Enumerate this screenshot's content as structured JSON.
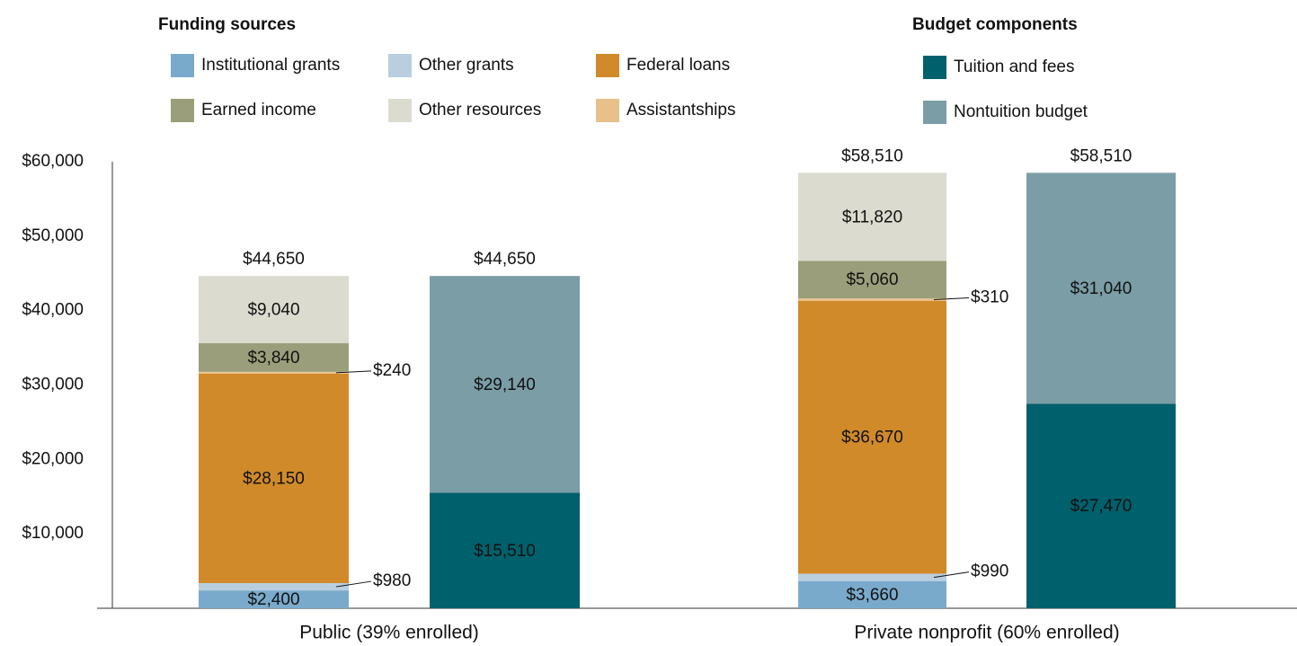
{
  "chart_data": {
    "type": "stacked_bar",
    "categories": [
      "Public (39% enrolled)",
      "Private nonprofit (60% enrolled)"
    ],
    "ylim": [
      0,
      60000
    ],
    "yticks": [
      {
        "value": 10000,
        "label": "$10,000"
      },
      {
        "value": 20000,
        "label": "$20,000"
      },
      {
        "value": 30000,
        "label": "$30,000"
      },
      {
        "value": 40000,
        "label": "$40,000"
      },
      {
        "value": 50000,
        "label": "$50,000"
      },
      {
        "value": 60000,
        "label": "$60,000"
      }
    ],
    "stacks": [
      {
        "legend_title": "Funding sources",
        "totals": [
          44650,
          58510
        ],
        "total_labels": [
          "$44,650",
          "$58,510"
        ],
        "series": [
          {
            "name": "Institutional grants",
            "color": "#7aaacb",
            "values": [
              2400,
              3660
            ],
            "value_labels": [
              "$2,400",
              "$3,660"
            ]
          },
          {
            "name": "Other grants",
            "color": "#b9cfe0",
            "values": [
              980,
              990
            ],
            "value_labels": [
              "$980",
              "$990"
            ]
          },
          {
            "name": "Federal loans",
            "color": "#d08a2a",
            "values": [
              28150,
              36670
            ],
            "value_labels": [
              "$28,150",
              "$36,670"
            ]
          },
          {
            "name": "Assistantships",
            "color": "#e8c08a",
            "values": [
              240,
              310
            ],
            "value_labels": [
              "$240",
              "$310"
            ]
          },
          {
            "name": "Earned income",
            "color": "#9b9e7a",
            "values": [
              3840,
              5060
            ],
            "value_labels": [
              "$3,840",
              "$5,060"
            ]
          },
          {
            "name": "Other resources",
            "color": "#dbdbcf",
            "values": [
              9040,
              11820
            ],
            "value_labels": [
              "$9,040",
              "$11,820"
            ]
          }
        ]
      },
      {
        "legend_title": "Budget components",
        "totals": [
          44650,
          58510
        ],
        "total_labels": [
          "$44,650",
          "$58,510"
        ],
        "series": [
          {
            "name": "Tuition and fees",
            "color": "#00606b",
            "values": [
              15510,
              27470
            ],
            "value_labels": [
              "$15,510",
              "$27,470"
            ]
          },
          {
            "name": "Nontuition budget",
            "color": "#7a9da6",
            "values": [
              29140,
              31040
            ],
            "value_labels": [
              "$29,140",
              "$31,040"
            ]
          }
        ]
      }
    ]
  }
}
